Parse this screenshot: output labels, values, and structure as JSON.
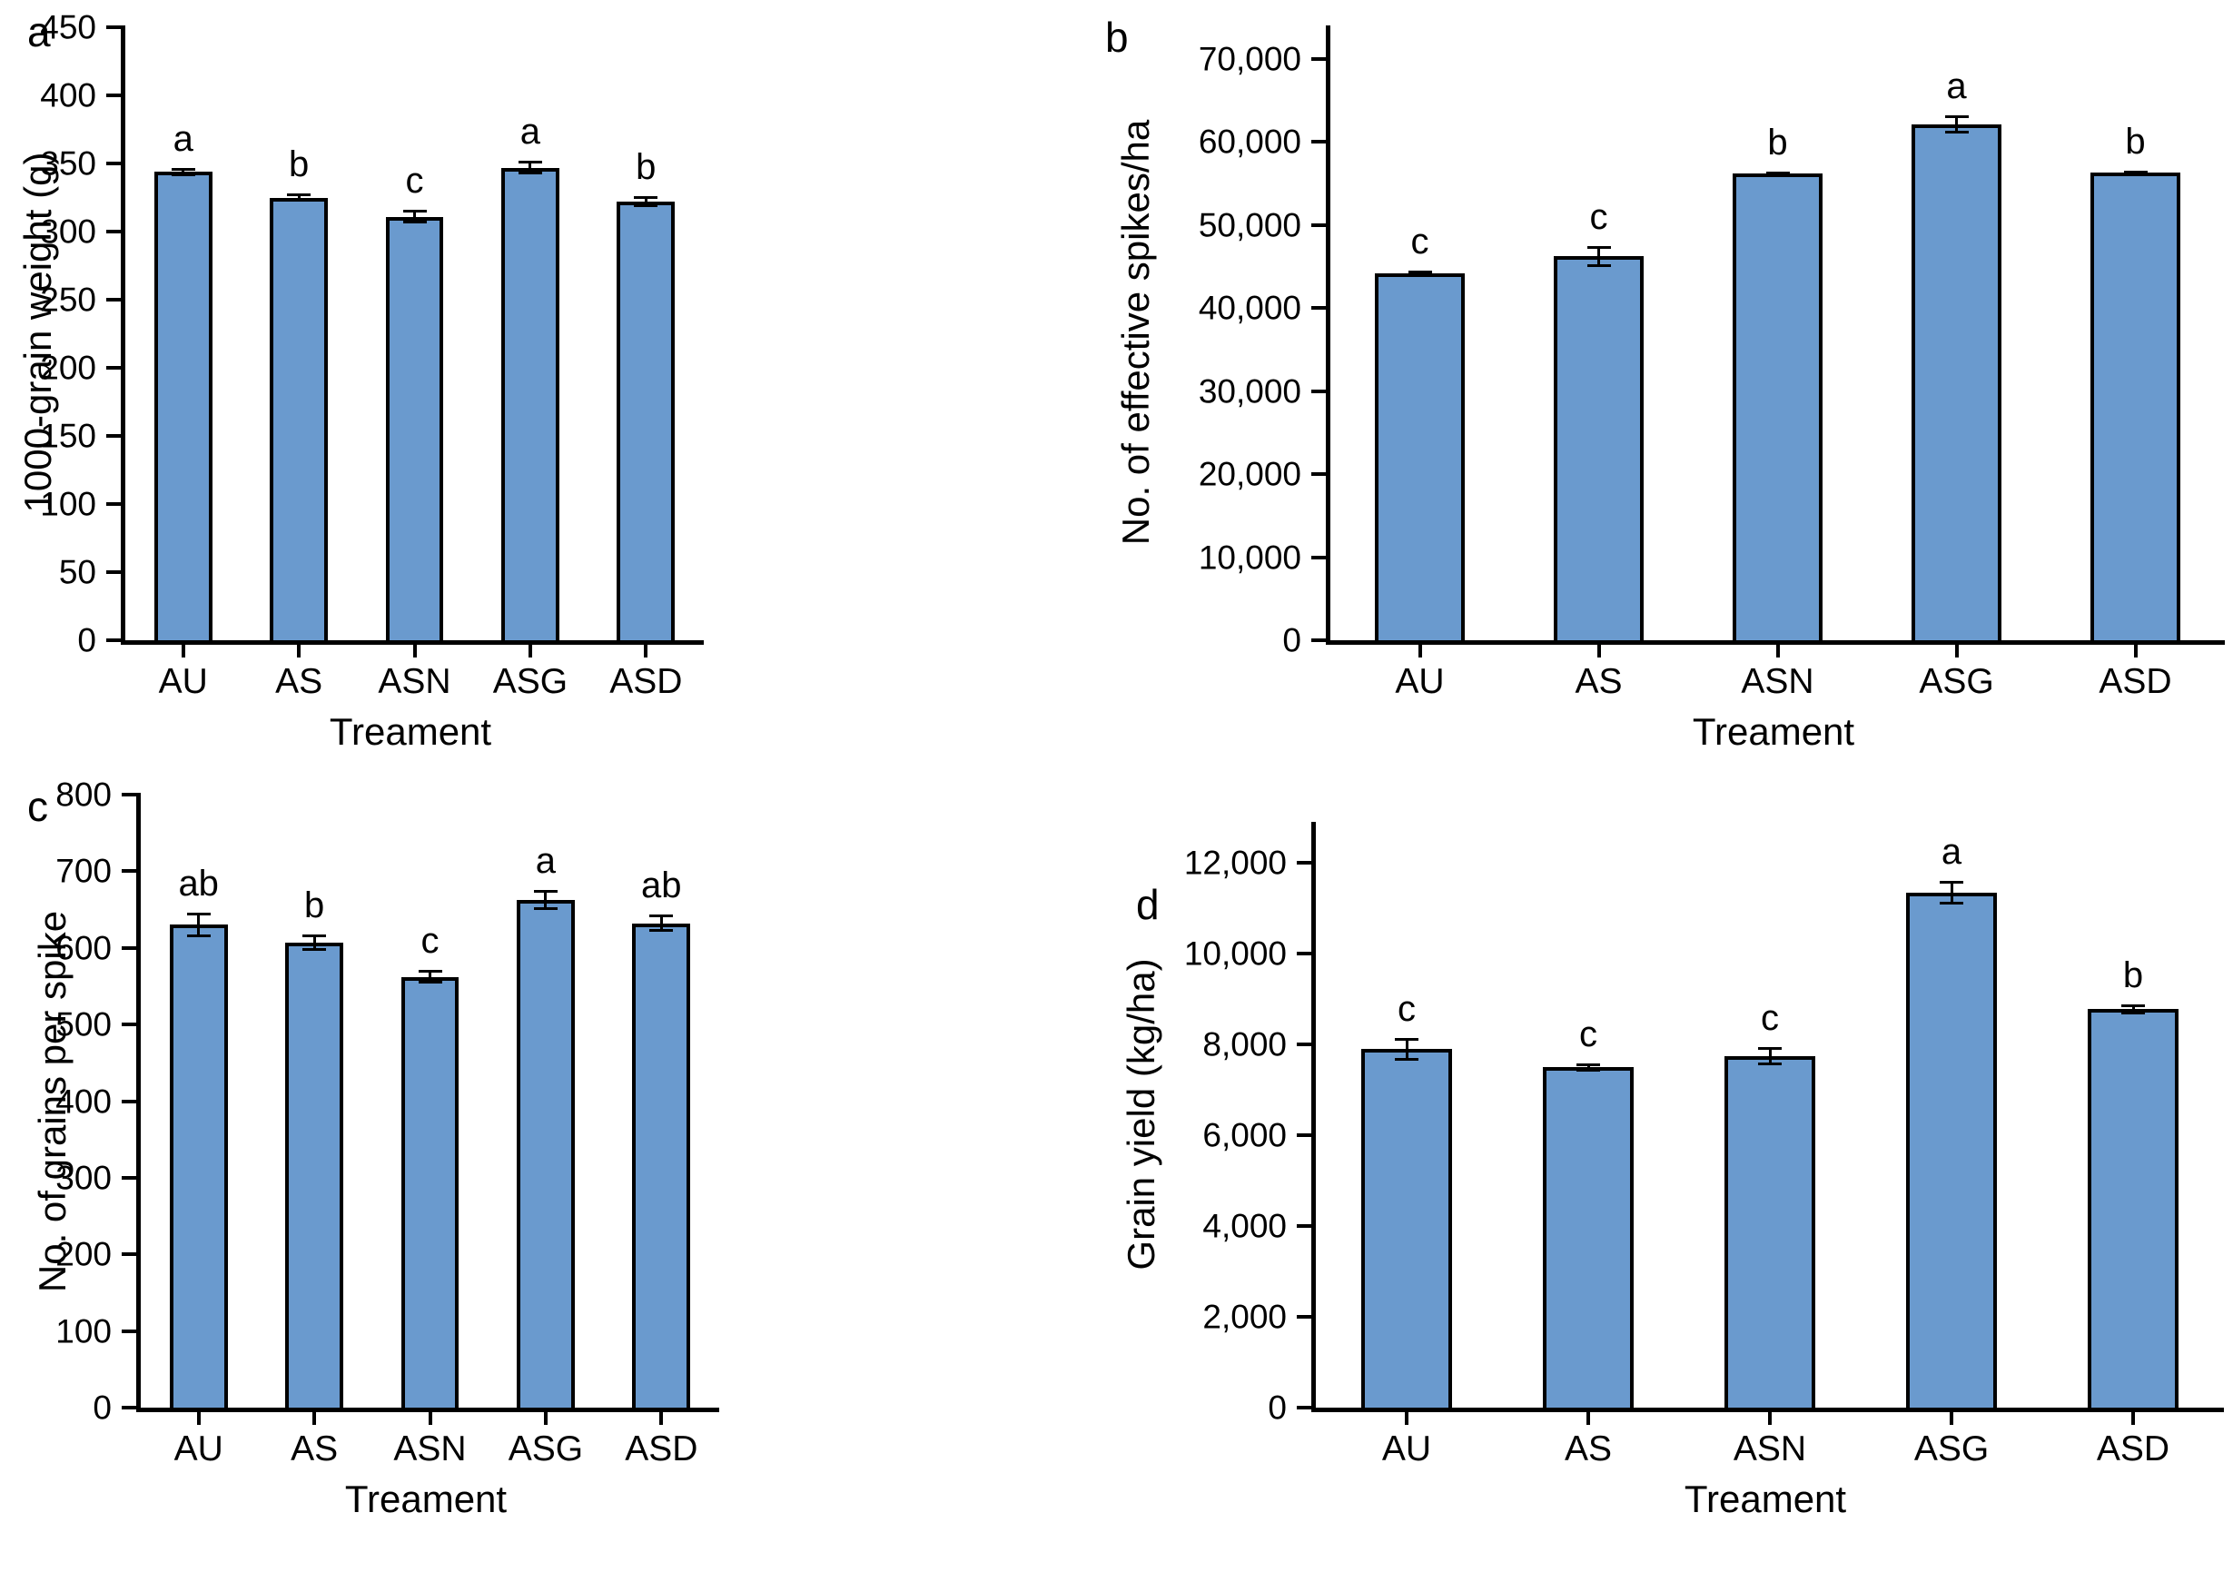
{
  "style": {
    "background": "#FFFFFF",
    "bar_fill": "#6A9ACE",
    "bar_stroke": "#000000",
    "error_bar_color": "#000000",
    "text_color": "#000000"
  },
  "x_axis_title": "Treament",
  "chart_data": [
    {
      "type": "bar",
      "panel": "a",
      "title": "",
      "ylabel": "1000-grain weight (g)",
      "xlabel": "Treament",
      "categories": [
        "AU",
        "AS",
        "ASN",
        "ASG",
        "ASD"
      ],
      "values": [
        344,
        325,
        311,
        347,
        322
      ],
      "errors": [
        3,
        3,
        5,
        5,
        4
      ],
      "sig_letters": [
        "a",
        "b",
        "c",
        "a",
        "b"
      ],
      "ylim": [
        0,
        450
      ],
      "axis_max": 450,
      "grid": false,
      "yticks": [
        {
          "value": 0,
          "label": "0"
        },
        {
          "value": 50,
          "label": "50"
        },
        {
          "value": 100,
          "label": "100"
        },
        {
          "value": 150,
          "label": "150"
        },
        {
          "value": 200,
          "label": "200"
        },
        {
          "value": 250,
          "label": "250"
        },
        {
          "value": 300,
          "label": "300"
        },
        {
          "value": 350,
          "label": "350"
        },
        {
          "value": 400,
          "label": "400"
        },
        {
          "value": 450,
          "label": "450"
        }
      ]
    },
    {
      "type": "bar",
      "panel": "b",
      "title": "",
      "ylabel": "No. of effective spikes/ha",
      "xlabel": "Treament",
      "categories": [
        "AU",
        "AS",
        "ASN",
        "ASG",
        "ASD"
      ],
      "values": [
        44200,
        46200,
        56200,
        62100,
        56300
      ],
      "errors": [
        250,
        1250,
        250,
        1100,
        250
      ],
      "sig_letters": [
        "c",
        "c",
        "b",
        "a",
        "b"
      ],
      "ylim": [
        0,
        70000
      ],
      "axis_max": 74000,
      "grid": false,
      "yticks": [
        {
          "value": 0,
          "label": "0"
        },
        {
          "value": 10000,
          "label": "10,000"
        },
        {
          "value": 20000,
          "label": "20,000"
        },
        {
          "value": 30000,
          "label": "30,000"
        },
        {
          "value": 40000,
          "label": "40,000"
        },
        {
          "value": 50000,
          "label": "50,000"
        },
        {
          "value": 60000,
          "label": "60,000"
        },
        {
          "value": 70000,
          "label": "70,000"
        }
      ]
    },
    {
      "type": "bar",
      "panel": "c",
      "title": "",
      "ylabel": "No. of grains per spike",
      "xlabel": "Treament",
      "categories": [
        "AU",
        "AS",
        "ASN",
        "ASG",
        "ASD"
      ],
      "values": [
        630,
        607,
        562,
        662,
        632
      ],
      "errors": [
        16,
        11,
        9,
        13,
        11
      ],
      "sig_letters": [
        "ab",
        "b",
        "c",
        "a",
        "ab"
      ],
      "ylim": [
        0,
        800
      ],
      "axis_max": 800,
      "grid": false,
      "yticks": [
        {
          "value": 0,
          "label": "0"
        },
        {
          "value": 100,
          "label": "100"
        },
        {
          "value": 200,
          "label": "200"
        },
        {
          "value": 300,
          "label": "300"
        },
        {
          "value": 400,
          "label": "400"
        },
        {
          "value": 500,
          "label": "500"
        },
        {
          "value": 600,
          "label": "600"
        },
        {
          "value": 700,
          "label": "700"
        },
        {
          "value": 800,
          "label": "800"
        }
      ]
    },
    {
      "type": "bar",
      "panel": "d",
      "title": "",
      "ylabel": "Grain yield (kg/ha)",
      "xlabel": "Treament",
      "categories": [
        "AU",
        "AS",
        "ASN",
        "ASG",
        "ASD"
      ],
      "values": [
        7900,
        7500,
        7750,
        11350,
        8780
      ],
      "errors": [
        250,
        90,
        200,
        260,
        110
      ],
      "sig_letters": [
        "c",
        "c",
        "c",
        "a",
        "b"
      ],
      "ylim": [
        0,
        12000
      ],
      "axis_max": 12900,
      "grid": false,
      "yticks": [
        {
          "value": 0,
          "label": "0"
        },
        {
          "value": 2000,
          "label": "2,000"
        },
        {
          "value": 4000,
          "label": "4,000"
        },
        {
          "value": 6000,
          "label": "6,000"
        },
        {
          "value": 8000,
          "label": "8,000"
        },
        {
          "value": 10000,
          "label": "10,000"
        },
        {
          "value": 12000,
          "label": "12,000"
        }
      ]
    }
  ]
}
